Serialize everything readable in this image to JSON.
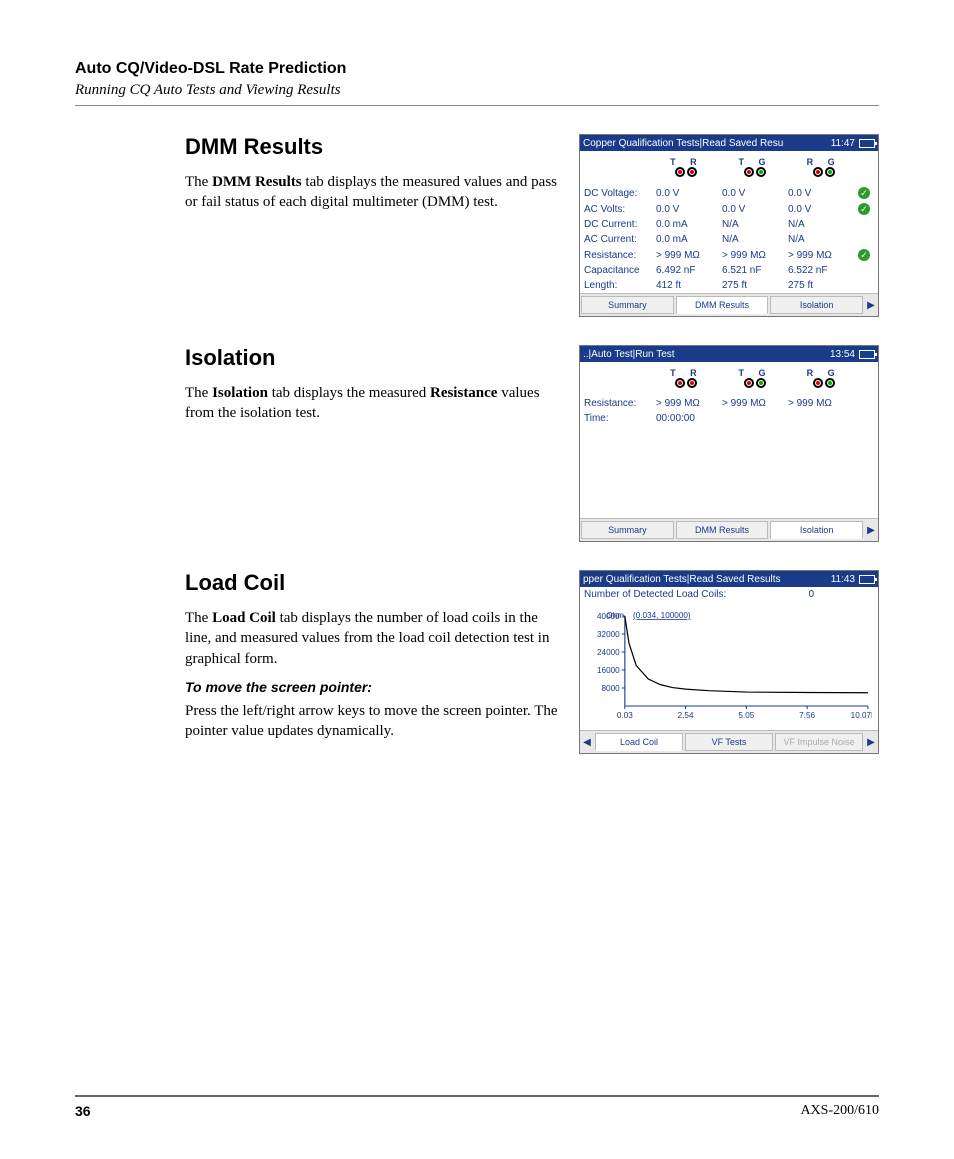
{
  "page": {
    "header_title": "Auto CQ/Video-DSL Rate Prediction",
    "header_subtitle": "Running CQ Auto Tests and Viewing Results",
    "page_number": "36",
    "product": "AXS-200/610"
  },
  "sections": {
    "dmm": {
      "heading": "DMM Results",
      "para_prefix": "The ",
      "para_bold": "DMM Results",
      "para_rest": " tab displays the measured values and pass or fail status of each digital multimeter (DMM) test."
    },
    "isolation": {
      "heading": "Isolation",
      "para_prefix": "The ",
      "para_bold1": "Isolation",
      "para_mid": " tab displays the measured ",
      "para_bold2": "Resistance",
      "para_rest": " values from the isolation test."
    },
    "loadcoil": {
      "heading": "Load Coil",
      "para_prefix": "The ",
      "para_bold": "Load Coil",
      "para_rest": " tab displays the number of load coils in the line, and measured values from the load coil detection test in graphical form.",
      "subhead": "To move the screen pointer:",
      "para2": "Press the left/right arrow keys to move the screen pointer. The pointer value updates dynamically."
    }
  },
  "screenshots": {
    "dmm": {
      "title": "Copper Qualification Tests|Read Saved Resu",
      "clock": "11:47",
      "pairs": [
        "T R",
        "T G",
        "R G"
      ],
      "rows": [
        {
          "label": "DC Voltage:",
          "vals": [
            "0.0 V",
            "0.0 V",
            "0.0 V"
          ],
          "check": true
        },
        {
          "label": "AC Volts:",
          "vals": [
            "0.0 V",
            "0.0 V",
            "0.0 V"
          ],
          "check": true
        },
        {
          "label": "DC Current:",
          "vals": [
            "0.0 mA",
            "N/A",
            "N/A"
          ],
          "check": false
        },
        {
          "label": "AC Current:",
          "vals": [
            "0.0 mA",
            "N/A",
            "N/A"
          ],
          "check": false
        },
        {
          "label": "Resistance:",
          "vals": [
            "> 999 MΩ",
            "> 999 MΩ",
            "> 999 MΩ"
          ],
          "check": true
        },
        {
          "label": "Capacitance",
          "vals": [
            "6.492 nF",
            "6.521 nF",
            "6.522 nF"
          ],
          "check": false
        },
        {
          "label": "Length:",
          "vals": [
            "412 ft",
            "275 ft",
            "275 ft"
          ],
          "check": false
        }
      ],
      "tabs": [
        "Summary",
        "DMM Results",
        "Isolation"
      ],
      "active_tab": 1
    },
    "isolation": {
      "title": "..|Auto Test|Run Test",
      "clock": "13:54",
      "pairs": [
        "T R",
        "T G",
        "R G"
      ],
      "rows": [
        {
          "label": "Resistance:",
          "vals": [
            "> 999 MΩ",
            "> 999 MΩ",
            "> 999 MΩ"
          ],
          "check": false
        },
        {
          "label": "Time:",
          "vals": [
            "00:00:00",
            "",
            ""
          ],
          "check": false
        }
      ],
      "tabs": [
        "Summary",
        "DMM Results",
        "Isolation"
      ],
      "active_tab": 2
    },
    "loadcoil": {
      "title": "pper Qualification Tests|Read Saved Results",
      "clock": "11:43",
      "detected_label": "Number of Detected Load Coils:",
      "detected_value": "0",
      "chart": {
        "y_label": "Ohm",
        "cursor_label": "(0.034, 100000)",
        "y_ticks": [
          "40000",
          "32000",
          "24000",
          "16000",
          "8000"
        ],
        "x_ticks": [
          "0.03",
          "2.54",
          "5.05",
          "7.56",
          "10.07kHz"
        ],
        "line_color": "#000000",
        "axis_color": "#1a3a8a",
        "cursor_color": "#1a3a8a",
        "points_x": [
          0.03,
          0.2,
          0.5,
          1.0,
          1.5,
          2.0,
          2.54,
          3.5,
          5.05,
          7.56,
          10.07
        ],
        "points_y": [
          40000,
          28000,
          18000,
          12000,
          9500,
          8200,
          7500,
          6800,
          6200,
          6000,
          5900
        ],
        "x_min": 0.03,
        "x_max": 10.07,
        "y_min": 0,
        "y_max": 40000
      },
      "tabs": [
        "Load Coil",
        "VF Tests",
        "VF Impulse Noise"
      ],
      "active_tab": 0
    }
  },
  "colors": {
    "titlebar_bg": "#1a3a8a",
    "text_blue": "#1a3a8a",
    "dot_red": "#d00000",
    "dot_green": "#00a000",
    "check_green": "#2a9d2a"
  }
}
